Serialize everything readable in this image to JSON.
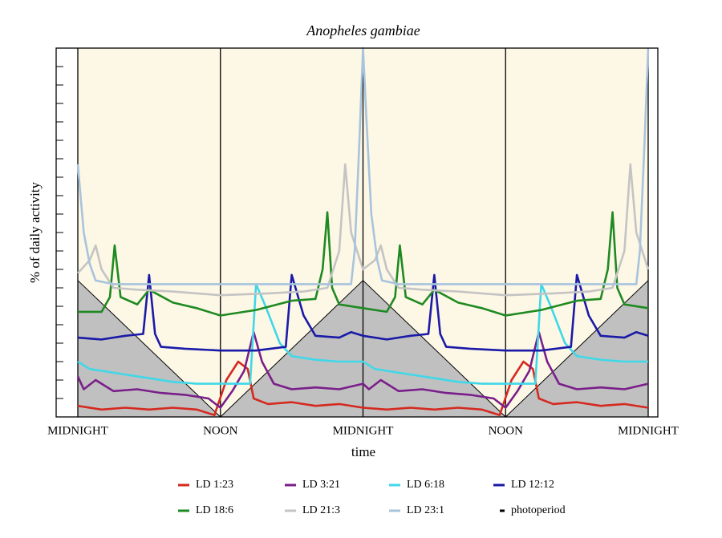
{
  "chart_data": {
    "type": "line",
    "title": "Anopheles gambiae",
    "ylabel": "% of daily activity",
    "xlabel": "time",
    "xlim": [
      0,
      48
    ],
    "xticks": [
      {
        "value": 0,
        "label": "MIDNIGHT"
      },
      {
        "value": 12,
        "label": "NOON"
      },
      {
        "value": 24,
        "label": "MIDNIGHT"
      },
      {
        "value": 36,
        "label": "NOON"
      },
      {
        "value": 48,
        "label": "MIDNIGHT"
      }
    ],
    "ylim": [
      0,
      20
    ],
    "yticks": [
      1,
      2,
      3,
      4,
      5,
      6,
      7,
      8,
      9,
      10,
      11,
      12,
      13,
      14,
      15,
      16,
      17,
      18,
      19
    ],
    "background": "#fdf7e6",
    "photoperiod": {
      "name": "photoperiod",
      "color": "#000000",
      "fill": "#c0c0c0",
      "x": [
        0,
        12,
        24,
        36,
        48
      ],
      "values": [
        7.4,
        0,
        7.4,
        0,
        7.4
      ]
    },
    "series": [
      {
        "name": "LD 1:23",
        "color": "#d42a20",
        "x": [
          0,
          2,
          4,
          6,
          8,
          10,
          11.5,
          12.5,
          13.5,
          14.3,
          14.8,
          16,
          18,
          20,
          22,
          24,
          26,
          28,
          30,
          32,
          34,
          35.5,
          36.5,
          37.5,
          38.3,
          38.8,
          40,
          42,
          44,
          46,
          48
        ],
        "values": [
          0.6,
          0.4,
          0.5,
          0.4,
          0.5,
          0.4,
          0.1,
          2.0,
          3.0,
          2.6,
          1.0,
          0.7,
          0.8,
          0.6,
          0.7,
          0.5,
          0.4,
          0.5,
          0.4,
          0.5,
          0.4,
          0.1,
          2.0,
          3.0,
          2.6,
          1.0,
          0.7,
          0.8,
          0.6,
          0.7,
          0.5
        ]
      },
      {
        "name": "LD 3:21",
        "color": "#7a1f8a",
        "x": [
          0,
          0.5,
          1.5,
          3,
          5,
          7,
          9,
          11,
          12,
          13,
          14,
          14.8,
          15.5,
          16.5,
          18,
          20,
          22,
          24,
          24.5,
          25.5,
          27,
          29,
          31,
          33,
          35,
          36,
          37,
          38,
          38.8,
          39.5,
          40.5,
          42,
          44,
          46,
          48
        ],
        "values": [
          2.2,
          1.5,
          2.0,
          1.4,
          1.5,
          1.3,
          1.2,
          1.0,
          0.5,
          1.4,
          2.5,
          4.6,
          3.0,
          1.8,
          1.5,
          1.6,
          1.5,
          1.8,
          1.5,
          2.0,
          1.4,
          1.5,
          1.3,
          1.2,
          1.0,
          0.5,
          1.4,
          2.5,
          4.6,
          3.0,
          1.8,
          1.5,
          1.6,
          1.5,
          1.8
        ]
      },
      {
        "name": "LD 6:18",
        "color": "#3fd8e8",
        "x": [
          0,
          1,
          2,
          4,
          6,
          8,
          10,
          12,
          14.5,
          15,
          15.8,
          17,
          18,
          20,
          22,
          24,
          25,
          26,
          28,
          30,
          32,
          34,
          36,
          38.5,
          39,
          39.8,
          41,
          42,
          44,
          46,
          48
        ],
        "values": [
          3.0,
          2.6,
          2.5,
          2.3,
          2.1,
          1.9,
          1.8,
          1.8,
          1.8,
          7.2,
          6.0,
          4.0,
          3.3,
          3.1,
          3.0,
          3.0,
          2.6,
          2.5,
          2.3,
          2.1,
          1.9,
          1.8,
          1.8,
          1.8,
          7.2,
          6.0,
          4.0,
          3.3,
          3.1,
          3.0,
          3.0
        ]
      },
      {
        "name": "LD 12:12",
        "color": "#1a1aa8",
        "x": [
          0,
          2,
          4,
          5.5,
          6,
          6.5,
          7,
          9,
          12,
          15,
          17.5,
          18,
          19,
          20,
          22,
          23,
          24,
          26,
          28,
          29.5,
          30,
          30.5,
          31,
          33,
          36,
          39,
          41.5,
          42,
          43,
          44,
          46,
          47,
          48
        ],
        "values": [
          4.3,
          4.2,
          4.4,
          4.5,
          7.7,
          4.5,
          3.8,
          3.7,
          3.6,
          3.6,
          3.8,
          7.7,
          5.5,
          4.4,
          4.3,
          4.6,
          4.4,
          4.2,
          4.4,
          4.5,
          7.7,
          4.5,
          3.8,
          3.7,
          3.6,
          3.6,
          3.8,
          7.7,
          5.5,
          4.4,
          4.3,
          4.6,
          4.4
        ]
      },
      {
        "name": "LD 18:6",
        "color": "#1f8a22",
        "x": [
          0,
          2,
          2.7,
          3.1,
          3.6,
          5,
          6,
          8,
          10,
          12,
          15,
          18,
          20,
          20.6,
          21,
          21.4,
          22,
          24,
          26,
          26.7,
          27.1,
          27.6,
          29,
          30,
          32,
          34,
          36,
          39,
          42,
          44,
          44.6,
          45,
          45.4,
          46,
          48
        ],
        "values": [
          5.7,
          5.7,
          6.5,
          9.3,
          6.5,
          6.1,
          6.9,
          6.2,
          5.9,
          5.5,
          5.8,
          6.3,
          6.4,
          8.0,
          11.1,
          7.0,
          6.1,
          5.9,
          5.7,
          6.5,
          9.3,
          6.5,
          6.1,
          6.9,
          6.2,
          5.9,
          5.5,
          5.8,
          6.3,
          6.4,
          8.0,
          11.1,
          7.0,
          6.1,
          5.9
        ]
      },
      {
        "name": "LD 21:3",
        "color": "#c4c4c4",
        "x": [
          0,
          1,
          1.5,
          2,
          3,
          5,
          8,
          10,
          12,
          16,
          19,
          21,
          22,
          22.5,
          23,
          24,
          25,
          25.5,
          26,
          27,
          29,
          32,
          34,
          36,
          40,
          43,
          45,
          46,
          46.5,
          47,
          48
        ],
        "values": [
          7.8,
          8.5,
          9.3,
          8.0,
          7.0,
          6.9,
          6.8,
          6.7,
          6.6,
          6.7,
          6.8,
          7.0,
          9.0,
          13.7,
          10.0,
          8.0,
          8.5,
          9.3,
          8.0,
          7.0,
          6.9,
          6.8,
          6.7,
          6.6,
          6.7,
          6.8,
          7.0,
          9.0,
          13.7,
          10.0,
          8.0
        ]
      },
      {
        "name": "LD 23:1",
        "color": "#a8c4dc",
        "x": [
          0,
          0.5,
          1,
          1.5,
          3,
          6,
          9,
          12,
          15,
          18,
          21,
          23,
          23.3,
          23.7,
          24,
          24.3,
          24.7,
          25.2,
          25.6,
          27,
          30,
          33,
          36,
          39,
          42,
          45,
          47,
          47.3,
          47.7,
          48
        ],
        "values": [
          13.7,
          10.0,
          8.3,
          7.4,
          7.2,
          7.2,
          7.2,
          7.2,
          7.2,
          7.2,
          7.2,
          7.2,
          9.0,
          15.0,
          20.0,
          16.0,
          11.0,
          8.5,
          7.4,
          7.2,
          7.2,
          7.2,
          7.2,
          7.2,
          7.2,
          7.2,
          7.2,
          9.0,
          15.0,
          20.0
        ]
      }
    ]
  }
}
